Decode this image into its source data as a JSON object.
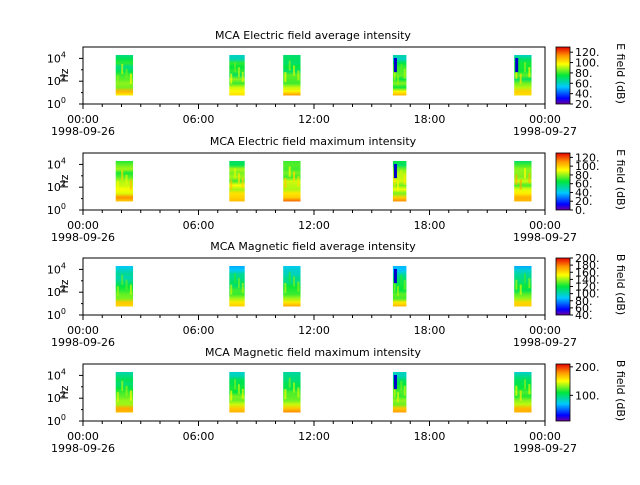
{
  "figure": {
    "background": "#ffffff"
  },
  "chart_data": [
    {
      "type": "heatmap",
      "title": "MCA  Electric field average intensity",
      "ylabel": "Hz",
      "cbar_label": "E field (dB)",
      "cbar_ticks": [
        "20.",
        "40.",
        "60.",
        "80.",
        "100.",
        "120."
      ],
      "cbar_range": [
        20,
        130
      ],
      "cbar_scheme": "rainbow",
      "yscale": "log",
      "ylim": [
        1,
        100000
      ],
      "ytick_exponents": [
        "0",
        "2",
        "4"
      ],
      "xtick_labels": [
        "00:00",
        "06:00",
        "12:00",
        "18:00",
        "00:00"
      ],
      "xdate_start": "1998-09-26",
      "xdate_end": "1998-09-27",
      "xlim_hours": [
        0,
        24
      ],
      "intervals_hours": [
        [
          1.7,
          2.6
        ],
        [
          7.6,
          8.4
        ],
        [
          10.4,
          11.3
        ],
        [
          16.1,
          16.8
        ],
        [
          22.4,
          23.3
        ]
      ],
      "freq_range_hz": [
        5.6,
        20000
      ],
      "profile": "E_avg"
    },
    {
      "type": "heatmap",
      "title": "MCA  Electric field maximum intensity",
      "ylabel": "Hz",
      "cbar_label": "E field (dB)",
      "cbar_ticks": [
        "0.",
        "20.",
        "40.",
        "60.",
        "80.",
        "100.",
        "120."
      ],
      "cbar_range": [
        0,
        130
      ],
      "cbar_scheme": "rainbow",
      "yscale": "log",
      "ylim": [
        1,
        100000
      ],
      "ytick_exponents": [
        "0",
        "2",
        "4"
      ],
      "xtick_labels": [
        "00:00",
        "06:00",
        "12:00",
        "18:00",
        "00:00"
      ],
      "xdate_start": "1998-09-26",
      "xdate_end": "1998-09-27",
      "xlim_hours": [
        0,
        24
      ],
      "intervals_hours": [
        [
          1.7,
          2.6
        ],
        [
          7.6,
          8.4
        ],
        [
          10.4,
          11.3
        ],
        [
          16.1,
          16.8
        ],
        [
          22.4,
          23.3
        ]
      ],
      "freq_range_hz": [
        5.6,
        20000
      ],
      "profile": "E_max"
    },
    {
      "type": "heatmap",
      "title": "MCA  Magnetic field average intensity",
      "ylabel": "Hz",
      "cbar_label": "B field (dB)",
      "cbar_ticks": [
        "40.",
        "60.",
        "80.",
        "100.",
        "120.",
        "140.",
        "160.",
        "180.",
        "200."
      ],
      "cbar_range": [
        40,
        200
      ],
      "cbar_scheme": "rainbow",
      "yscale": "log",
      "ylim": [
        1,
        100000
      ],
      "ytick_exponents": [
        "0",
        "2",
        "4"
      ],
      "xtick_labels": [
        "00:00",
        "06:00",
        "12:00",
        "18:00",
        "00:00"
      ],
      "xdate_start": "1998-09-26",
      "xdate_end": "1998-09-27",
      "xlim_hours": [
        0,
        24
      ],
      "intervals_hours": [
        [
          1.7,
          2.6
        ],
        [
          7.6,
          8.4
        ],
        [
          10.4,
          11.3
        ],
        [
          16.1,
          16.8
        ],
        [
          22.4,
          23.3
        ]
      ],
      "freq_range_hz": [
        5.6,
        20000
      ],
      "profile": "B_avg"
    },
    {
      "type": "heatmap",
      "title": "MCA  Magnetic field maximum intensity",
      "ylabel": "Hz",
      "cbar_label": "B field (dB)",
      "cbar_ticks": [
        "100.",
        "200."
      ],
      "cbar_range": [
        10,
        210
      ],
      "cbar_scheme": "rainbow",
      "yscale": "log",
      "ylim": [
        1,
        100000
      ],
      "ytick_exponents": [
        "0",
        "2",
        "4"
      ],
      "xtick_labels": [
        "00:00",
        "06:00",
        "12:00",
        "18:00",
        "00:00"
      ],
      "xdate_start": "1998-09-26",
      "xdate_end": "1998-09-27",
      "xlim_hours": [
        0,
        24
      ],
      "intervals_hours": [
        [
          1.7,
          2.6
        ],
        [
          7.6,
          8.4
        ],
        [
          10.4,
          11.3
        ],
        [
          16.1,
          16.8
        ],
        [
          22.4,
          23.3
        ]
      ],
      "freq_range_hz": [
        5.6,
        20000
      ],
      "profile": "B_max"
    }
  ]
}
